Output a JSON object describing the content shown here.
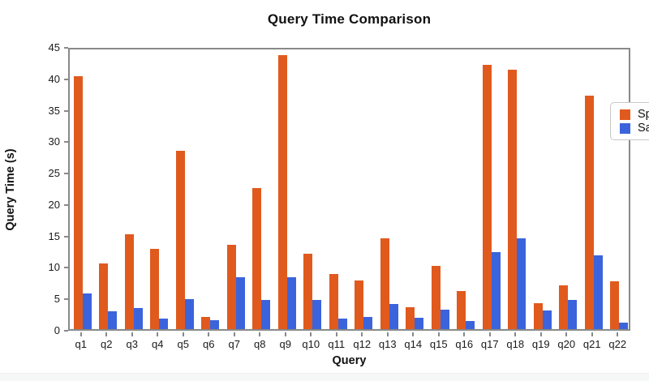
{
  "chart_data": {
    "type": "bar",
    "title": "Query Time Comparison",
    "xlabel": "Query",
    "ylabel": "Query Time (s)",
    "categories": [
      "q1",
      "q2",
      "q3",
      "q4",
      "q5",
      "q6",
      "q7",
      "q8",
      "q9",
      "q10",
      "q11",
      "q12",
      "q13",
      "q14",
      "q15",
      "q16",
      "q17",
      "q18",
      "q19",
      "q20",
      "q21",
      "q22"
    ],
    "series": [
      {
        "name": "Spark",
        "color": "#E05A1E",
        "values": [
          40.2,
          10.5,
          15.1,
          12.8,
          28.4,
          2.0,
          13.4,
          22.5,
          43.6,
          12.0,
          8.8,
          7.7,
          14.5,
          3.5,
          10.0,
          6.0,
          42.0,
          41.3,
          4.1,
          7.0,
          37.2,
          7.6
        ]
      },
      {
        "name": "Sail",
        "color": "#3B64DC",
        "values": [
          5.7,
          2.9,
          3.3,
          1.7,
          4.8,
          1.4,
          8.3,
          4.7,
          8.2,
          4.6,
          1.7,
          1.9,
          4.0,
          1.8,
          3.1,
          1.3,
          12.2,
          14.5,
          3.0,
          4.6,
          11.8,
          1.0
        ]
      }
    ],
    "ylim": [
      0,
      45
    ],
    "yticks": [
      0,
      5,
      10,
      15,
      20,
      25,
      30,
      35,
      40,
      45
    ],
    "grid": false,
    "legend_position": "upper right",
    "axis_color": "#898989"
  }
}
